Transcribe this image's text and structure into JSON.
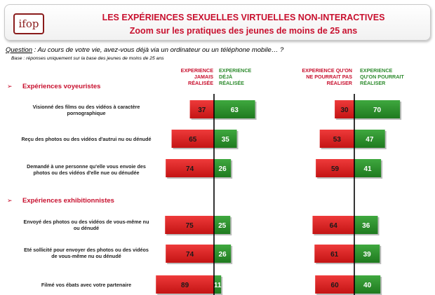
{
  "header": {
    "logo_text": "ifop",
    "title_line1": "LES EXPÉRIENCES SEXUELLES VIRTUELLES NON-INTERACTIVES",
    "title_line2": "Zoom sur les pratiques des jeunes de moins de 25 ans"
  },
  "question": {
    "label": "Question",
    "text": " : Au cours de votre vie, avez-vous déjà via un ordinateur ou un téléphone mobile… ?"
  },
  "base": "Base : réponses uniquement sur la base des jeunes de moins de 25 ans",
  "columns": {
    "left_red": "EXPERIENCE\nJAMAIS\nRÉALISÉE",
    "left_green": "EXPERIENCE\nDÉJÀ\nRÉALISÉE",
    "right_red": "EXPERIENCE QU'ON\nNE POURRAIT PAS\nRÉALISER",
    "right_green": "EXPERIENCE\nQU'ON POURRAIT\nRÉALISER"
  },
  "sections": [
    {
      "arrow": "➢",
      "title": "Expériences voyeuristes"
    },
    {
      "arrow": "➢",
      "title": "Expériences exhibitionnistes"
    }
  ],
  "colors": {
    "red": "#d61e1e",
    "green": "#2a8c2a",
    "title": "#c8102e"
  },
  "chart_data": {
    "type": "bar",
    "categories": [
      "Visionné des films ou des vidéos à caractère pornographique",
      "Reçu des photos ou des vidéos d'autrui nu ou dénudé",
      "Demandé à une personne qu'elle vous envoie des photos ou des vidéos d'elle nue ou dénudée",
      "Envoyé des photos ou des vidéos de vous-même nu ou dénudé",
      "Eté sollicité pour envoyer des photos ou des vidéos de vous-même nu ou dénudé",
      "Filmé vos ébats avec votre partenaire"
    ],
    "series": [
      {
        "name": "EXPERIENCE JAMAIS RÉALISÉE",
        "values": [
          37,
          65,
          74,
          75,
          74,
          89
        ]
      },
      {
        "name": "EXPERIENCE DÉJÀ RÉALISÉE",
        "values": [
          63,
          35,
          26,
          25,
          26,
          11
        ]
      },
      {
        "name": "EXPERIENCE QU'ON NE POURRAIT PAS RÉALISER",
        "values": [
          30,
          53,
          59,
          64,
          61,
          60
        ]
      },
      {
        "name": "EXPERIENCE QU'ON POURRAIT RÉALISER",
        "values": [
          70,
          47,
          41,
          36,
          39,
          40
        ]
      }
    ],
    "xlabel": "",
    "ylabel": ""
  }
}
